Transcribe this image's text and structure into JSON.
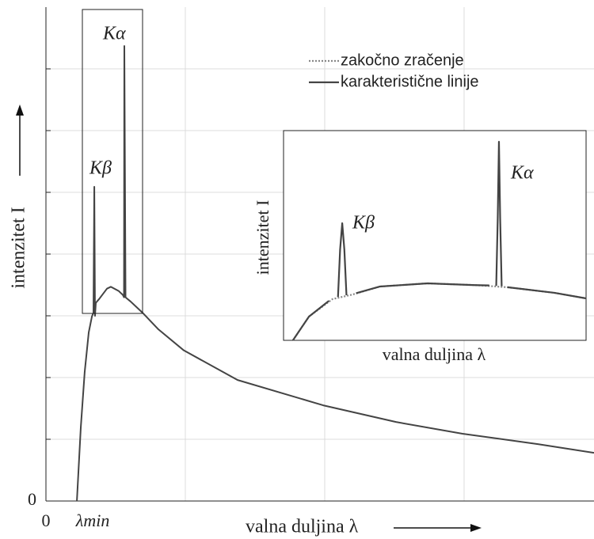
{
  "chart_data": [
    {
      "type": "line",
      "xlabel": "valna duljina λ",
      "ylabel": "intenzitet I",
      "xlim": [
        0,
        3.932
      ],
      "ylim": [
        0,
        8
      ],
      "xticks": [
        0,
        {
          "value": 0.222,
          "label": "λmin"
        }
      ],
      "yticks": [
        0
      ],
      "xgrid": [
        1,
        2,
        3
      ],
      "ygrid": [
        1,
        2,
        3,
        4,
        5,
        6,
        7
      ],
      "grid": true,
      "annotations": [
        "Kα",
        "Kβ"
      ],
      "series": [
        {
          "color": "#444444",
          "style": "solid",
          "x": [
            0.222,
            0.25,
            0.278,
            0.307,
            0.33,
            0.341,
            0.347,
            0.352,
            0.358,
            0.381,
            0.438,
            0.466,
            0.523,
            0.551,
            0.56,
            0.5625,
            0.571,
            0.608,
            0.693,
            0.807,
            0.989,
            1.375,
            1.989,
            2.511,
            2.989,
            3.534,
            3.932
          ],
          "values": [
            0,
            1.19,
            2.09,
            2.73,
            2.99,
            3.05,
            5.09,
            3.0,
            3.21,
            3.27,
            3.44,
            3.47,
            3.4,
            3.34,
            3.3,
            7.37,
            3.3,
            3.23,
            3.05,
            2.78,
            2.44,
            1.96,
            1.55,
            1.28,
            1.09,
            0.92,
            0.78
          ]
        }
      ]
    },
    {
      "type": "line",
      "xlabel": "valna duljina λ",
      "ylabel": "intenzitet I",
      "xlim": [
        0,
        10
      ],
      "ylim": [
        0,
        6
      ],
      "legend": "top-right",
      "annotations": [
        "Kβ",
        "Kα"
      ],
      "series": [
        {
          "name": "zakočno zračenje",
          "color": "#888888",
          "style": "dotted",
          "x": [
            0.31,
            0.84,
            1.62,
            2.28,
            3.19,
            4.76,
            6.34,
            7.38,
            8.95,
            10
          ],
          "values": [
            0,
            0.68,
            1.18,
            1.31,
            1.54,
            1.63,
            1.58,
            1.52,
            1.36,
            1.2
          ]
        },
        {
          "name": "karakteristične linije",
          "color": "#444444",
          "style": "solid",
          "x": [
            0.31,
            0.84,
            1.5,
            1.6,
            1.8,
            1.87,
            1.94,
            2.01,
            2.08,
            2.2,
            2.4,
            3.19,
            4.76,
            6.34,
            6.8,
            6.9,
            7.03,
            7.08,
            7.12,
            7.16,
            7.21,
            7.3,
            7.4,
            8.95,
            10
          ],
          "values": [
            0,
            0.68,
            1.13,
            null,
            1.24,
            2.6,
            3.35,
            2.6,
            1.29,
            null,
            1.35,
            1.54,
            1.63,
            1.58,
            1.57,
            null,
            1.56,
            3.5,
            5.68,
            3.5,
            1.55,
            null,
            1.52,
            1.36,
            1.2
          ]
        }
      ]
    }
  ]
}
